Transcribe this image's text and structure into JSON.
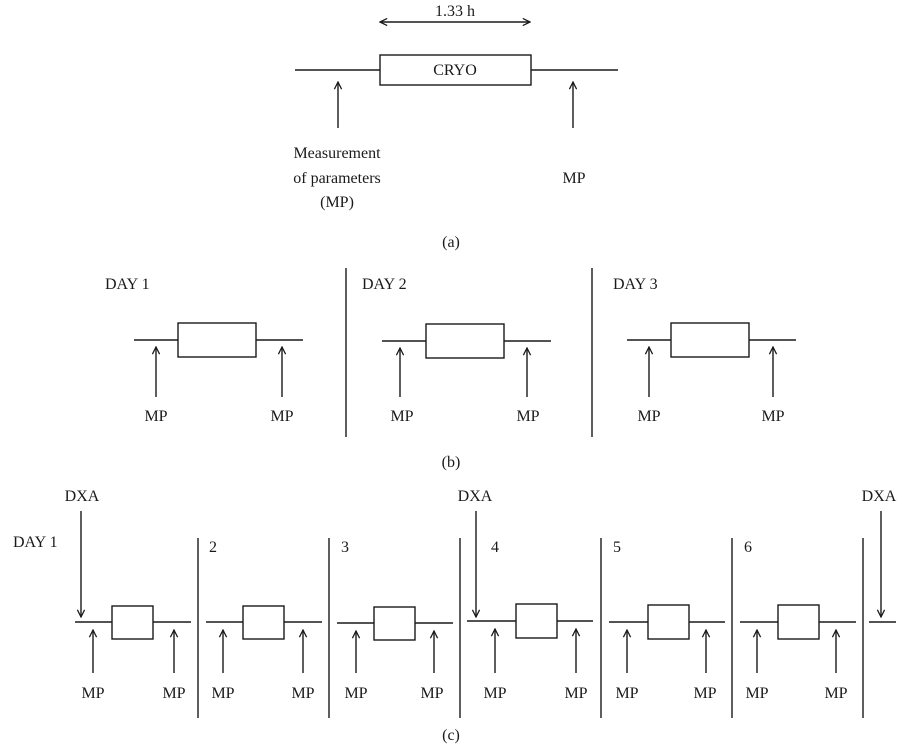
{
  "panel_a": {
    "duration_label": "1.33 h",
    "box_label": "CRYO",
    "left_label_lines": [
      "Measurement",
      "of parameters",
      "(MP)"
    ],
    "right_label": "MP",
    "caption": "(a)"
  },
  "panel_b": {
    "days": [
      "DAY 1",
      "DAY 2",
      "DAY 3"
    ],
    "mp_label": "MP",
    "caption": "(b)"
  },
  "panel_c": {
    "dxa_label": "DXA",
    "days": [
      "DAY 1",
      "2",
      "3",
      "4",
      "5",
      "6"
    ],
    "mp_label": "MP",
    "caption": "(c)"
  }
}
